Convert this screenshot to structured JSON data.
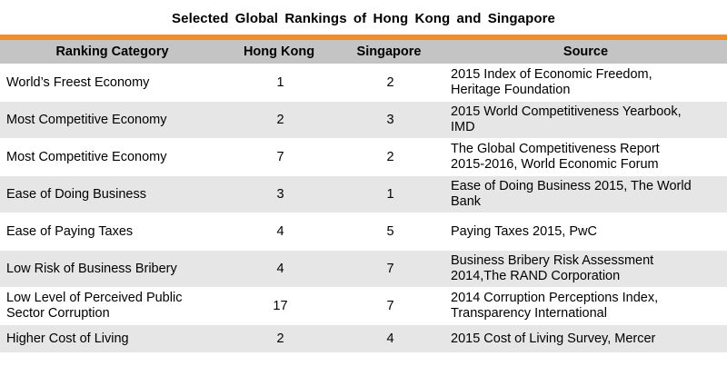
{
  "title": "Selected Global Rankings of Hong Kong and Singapore",
  "colors": {
    "accent_rule": "#f08c2a",
    "header_bg": "#c4c4c4",
    "stripe_bg": "#e6e6e6"
  },
  "table": {
    "headers": {
      "category": "Ranking Category",
      "hong_kong": "Hong Kong",
      "singapore": "Singapore",
      "source": "Source"
    },
    "rows": [
      {
        "category": "World’s Freest Economy",
        "hong_kong": "1",
        "singapore": "2",
        "source_line1": "2015 Index of Economic Freedom,",
        "source_line2": "Heritage Foundation"
      },
      {
        "category": "Most Competitive Economy",
        "hong_kong": "2",
        "singapore": "3",
        "source_line1": "2015 World Competitiveness Yearbook,",
        "source_line2": "IMD"
      },
      {
        "category": "Most Competitive Economy",
        "hong_kong": "7",
        "singapore": "2",
        "source_line1": "The Global Competitiveness Report",
        "source_line2": "2015-2016, World Economic Forum"
      },
      {
        "category": "Ease of Doing Business",
        "hong_kong": "3",
        "singapore": "1",
        "source_line1": "Ease of Doing Business 2015, The World",
        "source_line2": "Bank"
      },
      {
        "category": "Ease of Paying Taxes",
        "hong_kong": "4",
        "singapore": "5",
        "source_line1": "Paying Taxes 2015, PwC",
        "source_line2": ""
      },
      {
        "category": "Low Risk of Business Bribery",
        "hong_kong": "4",
        "singapore": "7",
        "source_line1": "Business Bribery Risk Assessment",
        "source_line2": "2014,The RAND Corporation"
      },
      {
        "category_line1": "Low Level of Perceived Public",
        "category_line2": "Sector Corruption",
        "hong_kong": "17",
        "singapore": "7",
        "source_line1": "2014 Corruption Perceptions Index,",
        "source_line2": "Transparency International"
      },
      {
        "category": "Higher Cost of Living",
        "hong_kong": "2",
        "singapore": "4",
        "source_line1": "2015 Cost of Living Survey, Mercer",
        "source_line2": ""
      }
    ]
  }
}
